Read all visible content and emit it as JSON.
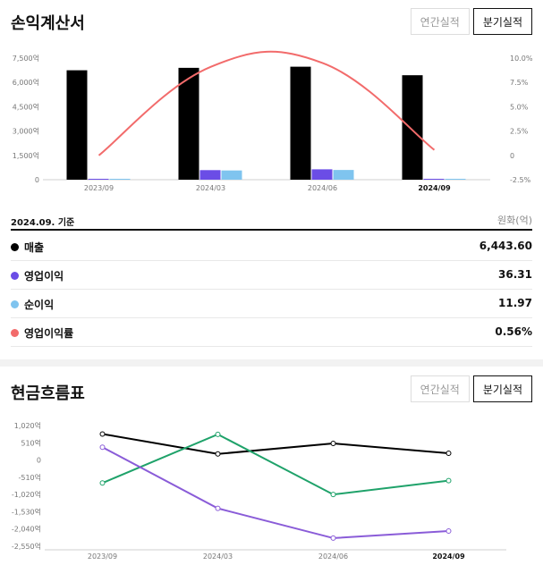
{
  "income": {
    "title": "손익계산서",
    "toggle": {
      "annual": "연간실적",
      "quarterly": "분기실적"
    },
    "basis": "2024.09. 기준",
    "unit": "원화(억)",
    "legend": [
      {
        "name": "매출",
        "value": "6,443.60",
        "color": "#000000"
      },
      {
        "name": "영업이익",
        "value": "36.31",
        "color": "#6b4de6"
      },
      {
        "name": "순이익",
        "value": "11.97",
        "color": "#7fc4ef"
      },
      {
        "name": "영업이익률",
        "value": "0.56%",
        "color": "#f26b6b"
      }
    ]
  },
  "cashflow": {
    "title": "현금흐름표",
    "toggle": {
      "annual": "연간실적",
      "quarterly": "분기실적"
    }
  },
  "chart_data": [
    {
      "type": "bar",
      "categories": [
        "2023/09",
        "2024/03",
        "2024/06",
        "2024/09"
      ],
      "y_ticks": [
        "7,500억",
        "6,000억",
        "4,500억",
        "3,000억",
        "1,500억",
        "0"
      ],
      "y2_ticks": [
        "10.0%",
        "7.5%",
        "5.0%",
        "2.5%",
        "0",
        "-2.5%"
      ],
      "ylim": [
        0,
        7500
      ],
      "y2lim": [
        -2.5,
        10
      ],
      "series": [
        {
          "name": "매출",
          "values": [
            6750,
            6900,
            6970,
            6443.6
          ],
          "color": "#000000"
        },
        {
          "name": "영업이익",
          "values": [
            15,
            590,
            640,
            36.31
          ],
          "color": "#6b4de6"
        },
        {
          "name": "순이익",
          "values": [
            10,
            570,
            600,
            11.97
          ],
          "color": "#7fc4ef"
        },
        {
          "name": "영업이익률",
          "values": [
            0,
            9.1,
            9.5,
            0.56
          ],
          "color": "#f26b6b",
          "axis": "right",
          "kind": "line"
        }
      ]
    },
    {
      "type": "line",
      "categories": [
        "2023/09",
        "2024/03",
        "2024/06",
        "2024/09"
      ],
      "y_ticks": [
        "1,020억",
        "510억",
        "0",
        "-510억",
        "-1,020억",
        "-1,530억",
        "-2,040억",
        "-2,550억"
      ],
      "ylim": [
        -2550,
        1020
      ],
      "series": [
        {
          "values": [
            770,
            180,
            490,
            200
          ],
          "color": "#000000"
        },
        {
          "values": [
            -680,
            760,
            -1020,
            -610
          ],
          "color": "#1fa26a"
        },
        {
          "values": [
            380,
            -1430,
            -2310,
            -2100
          ],
          "color": "#8a5cd8"
        }
      ]
    }
  ]
}
